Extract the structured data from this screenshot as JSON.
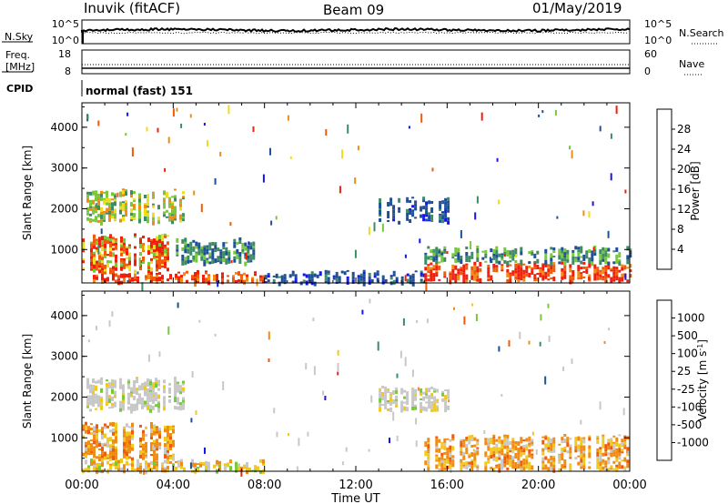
{
  "header": {
    "station": "Inuvik (fitACF)",
    "beam": "Beam 09",
    "date": "01/May/2019"
  },
  "strips": {
    "nsky_label": "N.Sky",
    "nsearch_label": "N.Search",
    "noise_ticks_left": [
      "10^5",
      "10^0"
    ],
    "noise_ticks_right": [
      "10^5",
      "10^0"
    ],
    "freq_label_1": "Freq.",
    "freq_label_2": "[MHz]",
    "freq_ticks": [
      "18",
      "8"
    ],
    "nave_label": "Nave",
    "nave_ticks": [
      "60",
      "0"
    ],
    "cpid_label": "CPID",
    "cpid_text": "normal (fast) 151"
  },
  "colors": {
    "power": [
      "#1414f0",
      "#1e5096",
      "#3c8c64",
      "#78c83c",
      "#f0dc1e",
      "#f08c14",
      "#f05a0a",
      "#f01e0a"
    ],
    "velocity": [
      "#1414f0",
      "#1e5096",
      "#3c8c64",
      "#78c83c",
      "#c8c8c8",
      "#f0c81e",
      "#f08c14",
      "#f05a0a",
      "#f01e0a"
    ]
  },
  "chart_data": [
    {
      "type": "heatmap",
      "name": "power",
      "ylabel": "Slant Range [km]",
      "xlabel": "",
      "x_ticks": [
        "00:00",
        "04:00",
        "08:00",
        "12:00",
        "16:00",
        "20:00",
        "00:00"
      ],
      "y_ticks": [
        1000,
        2000,
        3000,
        4000
      ],
      "ylim": [
        180,
        4600
      ],
      "xlim_hours": [
        0,
        24
      ],
      "colorbar": {
        "label": "Power [dB]",
        "ticks": [
          "4",
          "8",
          "12",
          "16",
          "20",
          "24",
          "28"
        ],
        "range": [
          0,
          32
        ]
      },
      "regions": [
        {
          "t0": 0.0,
          "t1": 3.8,
          "r0": 500,
          "r1": 1400,
          "dominant": "orange-red"
        },
        {
          "t0": 0.0,
          "t1": 8.0,
          "r0": 200,
          "r1": 500,
          "dominant": "red"
        },
        {
          "t0": 0.2,
          "t1": 4.5,
          "r0": 1700,
          "r1": 2500,
          "dominant": "green-yellow"
        },
        {
          "t0": 4.0,
          "t1": 7.5,
          "r0": 700,
          "r1": 1300,
          "dominant": "blue-green"
        },
        {
          "t0": 8.0,
          "t1": 15.0,
          "r0": 200,
          "r1": 500,
          "dominant": "blue"
        },
        {
          "t0": 13.0,
          "t1": 16.0,
          "r0": 1700,
          "r1": 2300,
          "dominant": "blue"
        },
        {
          "t0": 15.0,
          "t1": 24.0,
          "r0": 250,
          "r1": 700,
          "dominant": "red"
        },
        {
          "t0": 15.0,
          "t1": 24.0,
          "r0": 700,
          "r1": 1100,
          "dominant": "green-blue"
        }
      ]
    },
    {
      "type": "heatmap",
      "name": "velocity",
      "ylabel": "Slant Range [km]",
      "xlabel": "Time UT",
      "x_ticks": [
        "00:00",
        "04:00",
        "08:00",
        "12:00",
        "16:00",
        "20:00",
        "00:00"
      ],
      "y_ticks": [
        1000,
        2000,
        3000,
        4000
      ],
      "ylim": [
        180,
        4600
      ],
      "xlim_hours": [
        0,
        24
      ],
      "colorbar": {
        "label": "Velocity [m s^-1]",
        "ticks": [
          "1000",
          "500",
          "100",
          "25",
          "-25",
          "-100",
          "-500",
          "-1000"
        ],
        "range": [
          -1200,
          1200
        ]
      },
      "regions": [
        {
          "t0": 0.0,
          "t1": 4.0,
          "r0": 500,
          "r1": 1400,
          "dominant": "orange"
        },
        {
          "t0": 0.0,
          "t1": 8.0,
          "r0": 200,
          "r1": 500,
          "dominant": "orange-yellow"
        },
        {
          "t0": 0.2,
          "t1": 4.5,
          "r0": 1700,
          "r1": 2500,
          "dominant": "gray"
        },
        {
          "t0": 13.0,
          "t1": 16.0,
          "r0": 1700,
          "r1": 2300,
          "dominant": "gray"
        },
        {
          "t0": 15.0,
          "t1": 24.0,
          "r0": 250,
          "r1": 1100,
          "dominant": "orange"
        }
      ]
    }
  ]
}
